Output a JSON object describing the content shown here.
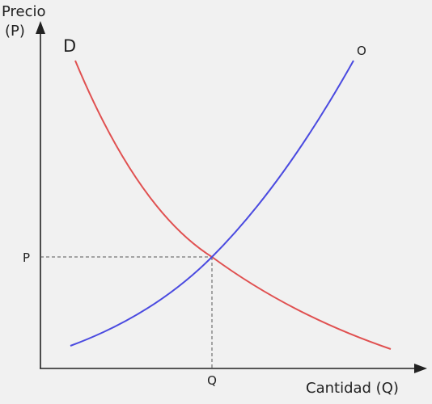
{
  "axes": {
    "y_label_line1": "Precio",
    "y_label_line2": "(P)",
    "x_label": "Cantidad (Q)"
  },
  "curves": {
    "demand": "D",
    "supply": "O"
  },
  "equilibrium": {
    "price": "P",
    "quantity": "Q"
  }
}
